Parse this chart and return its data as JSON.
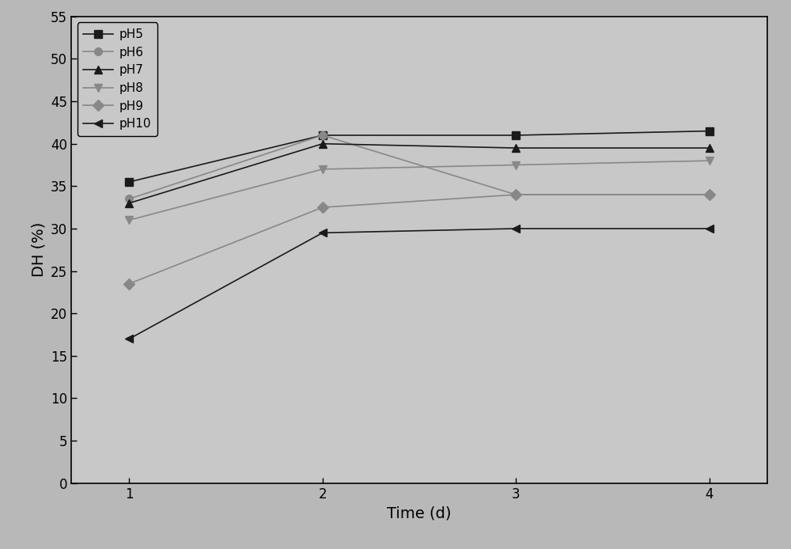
{
  "x": [
    1,
    2,
    3,
    4
  ],
  "series": [
    {
      "label": "pH5",
      "values": [
        35.5,
        41.0,
        41.0,
        41.5
      ],
      "color": "#1a1a1a",
      "marker": "s",
      "markersize": 7,
      "linewidth": 1.2
    },
    {
      "label": "pH6",
      "values": [
        33.5,
        41.0,
        34.0,
        34.0
      ],
      "color": "#888888",
      "marker": "o",
      "markersize": 7,
      "linewidth": 1.2
    },
    {
      "label": "pH7",
      "values": [
        33.0,
        40.0,
        39.5,
        39.5
      ],
      "color": "#1a1a1a",
      "marker": "^",
      "markersize": 7,
      "linewidth": 1.2
    },
    {
      "label": "pH8",
      "values": [
        31.0,
        37.0,
        37.5,
        38.0
      ],
      "color": "#888888",
      "marker": "v",
      "markersize": 7,
      "linewidth": 1.2
    },
    {
      "label": "pH9",
      "values": [
        23.5,
        32.5,
        34.0,
        34.0
      ],
      "color": "#888888",
      "marker": "D",
      "markersize": 7,
      "linewidth": 1.2
    },
    {
      "label": "pH10",
      "values": [
        17.0,
        29.5,
        30.0,
        30.0
      ],
      "color": "#1a1a1a",
      "marker": "<",
      "markersize": 7,
      "linewidth": 1.2
    }
  ],
  "xlabel": "Time (d)",
  "ylabel": "DH (%)",
  "xlim": [
    0.7,
    4.3
  ],
  "ylim": [
    0,
    55
  ],
  "yticks": [
    0,
    5,
    10,
    15,
    20,
    25,
    30,
    35,
    40,
    45,
    50,
    55
  ],
  "xticks": [
    1,
    2,
    3,
    4
  ],
  "plot_bg_color": "#c8c8c8",
  "outer_bg_color": "#b8b8b8",
  "legend_loc": "upper left",
  "xlabel_fontsize": 14,
  "ylabel_fontsize": 14,
  "tick_fontsize": 12,
  "legend_fontsize": 11,
  "figsize": [
    10.0,
    6.94
  ],
  "dpi": 100
}
